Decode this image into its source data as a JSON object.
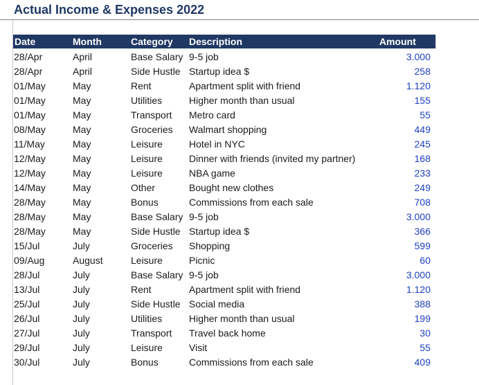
{
  "sheet": {
    "title": "Actual Income & Expenses 2022",
    "headers": {
      "date": "Date",
      "month": "Month",
      "category": "Category",
      "description": "Description",
      "amount": "Amount"
    },
    "rows": [
      {
        "date": "28/Apr",
        "month": "April",
        "category": "Base Salary",
        "description": "9-5 job",
        "amount": "3.000"
      },
      {
        "date": "28/Apr",
        "month": "April",
        "category": "Side Hustle",
        "description": "Startup idea $",
        "amount": "258"
      },
      {
        "date": "01/May",
        "month": "May",
        "category": "Rent",
        "description": "Apartment split with friend",
        "amount": "1.120"
      },
      {
        "date": "01/May",
        "month": "May",
        "category": "Utilities",
        "description": "Higher month than usual",
        "amount": "155"
      },
      {
        "date": "01/May",
        "month": "May",
        "category": "Transport",
        "description": "Metro card",
        "amount": "55"
      },
      {
        "date": "08/May",
        "month": "May",
        "category": "Groceries",
        "description": "Walmart shopping",
        "amount": "449"
      },
      {
        "date": "11/May",
        "month": "May",
        "category": "Leisure",
        "description": "Hotel in NYC",
        "amount": "245"
      },
      {
        "date": "12/May",
        "month": "May",
        "category": "Leisure",
        "description": "Dinner with friends (invited my partner)",
        "amount": "168"
      },
      {
        "date": "12/May",
        "month": "May",
        "category": "Leisure",
        "description": "NBA game",
        "amount": "233"
      },
      {
        "date": "14/May",
        "month": "May",
        "category": "Other",
        "description": "Bought new clothes",
        "amount": "249"
      },
      {
        "date": "28/May",
        "month": "May",
        "category": "Bonus",
        "description": "Commissions from each sale",
        "amount": "708"
      },
      {
        "date": "28/May",
        "month": "May",
        "category": "Base Salary",
        "description": "9-5 job",
        "amount": "3.000"
      },
      {
        "date": "28/May",
        "month": "May",
        "category": "Side Hustle",
        "description": "Startup idea $",
        "amount": "366"
      },
      {
        "date": "15/Jul",
        "month": "July",
        "category": "Groceries",
        "description": "Shopping",
        "amount": "599"
      },
      {
        "date": "09/Aug",
        "month": "August",
        "category": "Leisure",
        "description": "Picnic",
        "amount": "60"
      },
      {
        "date": "28/Jul",
        "month": "July",
        "category": "Base Salary",
        "description": "9-5 job",
        "amount": "3.000"
      },
      {
        "date": "13/Jul",
        "month": "July",
        "category": "Rent",
        "description": "Apartment split with friend",
        "amount": "1.120"
      },
      {
        "date": "25/Jul",
        "month": "July",
        "category": "Side Hustle",
        "description": "Social media",
        "amount": "388"
      },
      {
        "date": "26/Jul",
        "month": "July",
        "category": "Utilities",
        "description": "Higher month than usual",
        "amount": "199"
      },
      {
        "date": "27/Jul",
        "month": "July",
        "category": "Transport",
        "description": "Travel back home",
        "amount": "30"
      },
      {
        "date": "29/Jul",
        "month": "July",
        "category": "Leisure",
        "description": "Visit",
        "amount": "55"
      },
      {
        "date": "30/Jul",
        "month": "July",
        "category": "Bonus",
        "description": "Commissions from each sale",
        "amount": "409"
      }
    ]
  },
  "colors": {
    "title": "#1f3864",
    "header_bg": "#203864",
    "header_text": "#ffffff",
    "amount_text": "#1c3fbf"
  }
}
